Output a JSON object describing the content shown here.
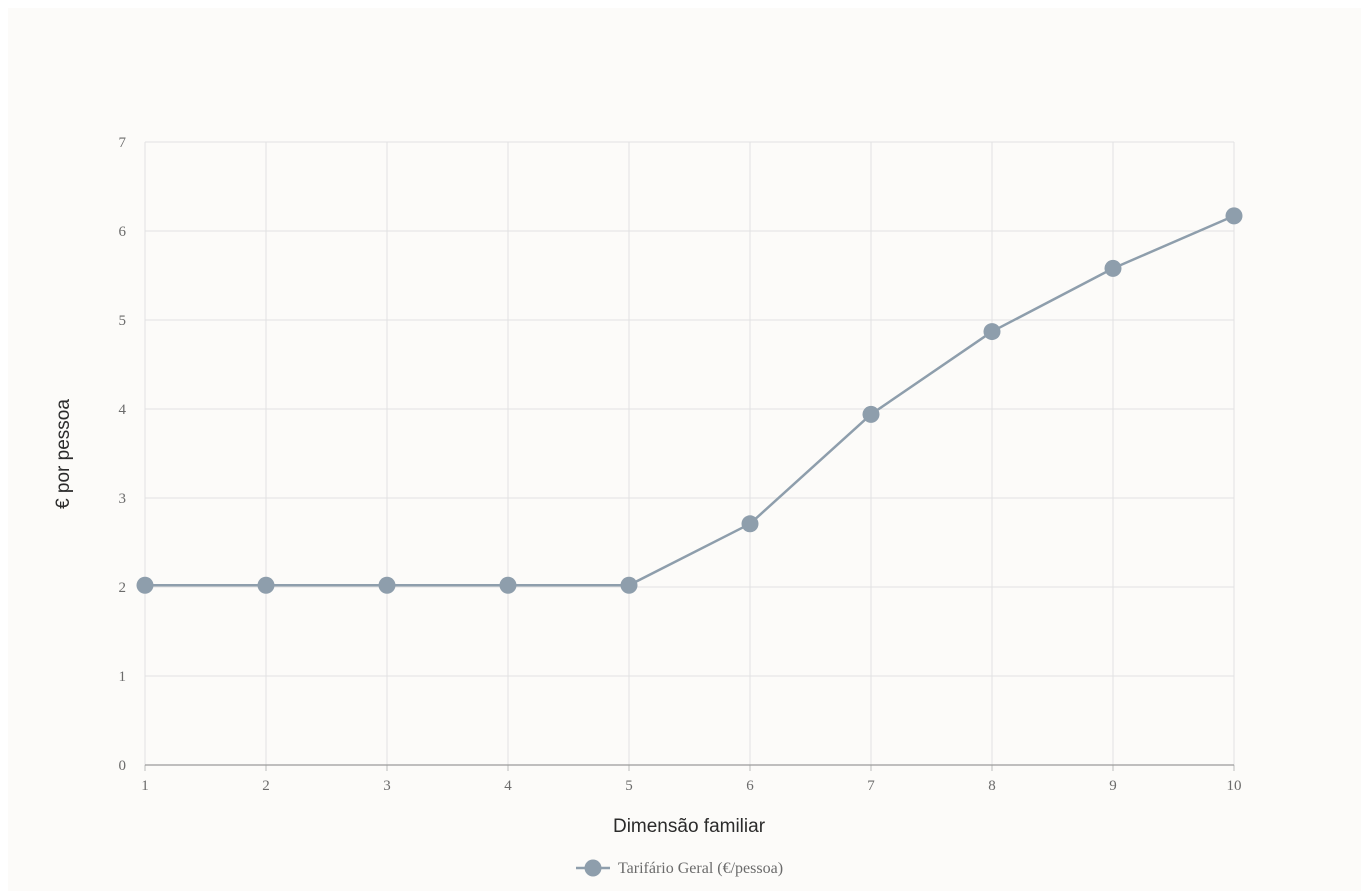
{
  "chart_data": {
    "type": "line",
    "title": "",
    "xlabel": "Dimensão familiar",
    "ylabel": "€ por pessoa",
    "x": [
      1,
      2,
      3,
      4,
      5,
      6,
      7,
      8,
      9,
      10
    ],
    "x_tick_labels": [
      "1",
      "2",
      "3",
      "4",
      "5",
      "6",
      "7",
      "8",
      "9",
      "10"
    ],
    "y_tick_labels": [
      "0",
      "1",
      "2",
      "3",
      "4",
      "5",
      "6",
      "7"
    ],
    "ylim": [
      0,
      7
    ],
    "xlim": [
      1,
      10
    ],
    "grid": true,
    "legend_position": "bottom",
    "series": [
      {
        "name": "Tarifário Geral (€/pessoa)",
        "color": "#8e9eac",
        "values": [
          2.02,
          2.02,
          2.02,
          2.02,
          2.02,
          2.71,
          3.94,
          4.87,
          5.58,
          6.17
        ]
      }
    ]
  }
}
